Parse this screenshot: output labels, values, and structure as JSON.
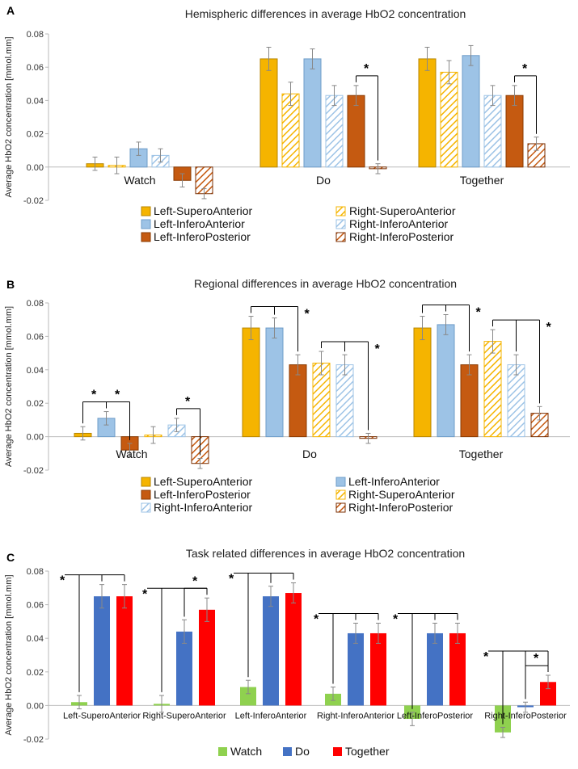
{
  "colors": {
    "lsa": "#F5B400",
    "lia": "#9DC3E6",
    "lip": "#C55A11",
    "watch": "#8FD14F",
    "do": "#4472C4",
    "together": "#FF0000",
    "rsa_hatch": "#F5B400",
    "ria_hatch": "#9DC3E6",
    "rip_hatch": "#C55A11"
  },
  "chart_data": [
    {
      "panel": "A",
      "type": "bar",
      "title": "Hemispheric differences in average HbO2 concentration",
      "ylabel": "Average HbO2 concentration [mmol.mm]",
      "ylim": [
        -0.02,
        0.08
      ],
      "yticks": [
        "0.08",
        "0.06",
        "0.04",
        "0.02",
        "0.00",
        "-0.02"
      ],
      "categories": [
        "Watch",
        "Do",
        "Together"
      ],
      "series": [
        {
          "name": "Left-SuperoAnterior",
          "style": "lsa",
          "values": [
            0.002,
            0.065,
            0.065
          ],
          "errors": [
            0.004,
            0.007,
            0.007
          ]
        },
        {
          "name": "Right-SuperoAnterior",
          "style": "rsa",
          "values": [
            0.001,
            0.044,
            0.057
          ],
          "errors": [
            0.005,
            0.007,
            0.007
          ]
        },
        {
          "name": "Left-InferoAnterior",
          "style": "lia",
          "values": [
            0.011,
            0.065,
            0.067
          ],
          "errors": [
            0.004,
            0.006,
            0.006
          ]
        },
        {
          "name": "Right-InferoAnterior",
          "style": "ria",
          "values": [
            0.007,
            0.043,
            0.043
          ],
          "errors": [
            0.004,
            0.006,
            0.006
          ]
        },
        {
          "name": "Left-InferoPosterior",
          "style": "lip",
          "values": [
            -0.008,
            0.043,
            0.043
          ],
          "errors": [
            0.004,
            0.006,
            0.006
          ]
        },
        {
          "name": "Right-InferoPosterior",
          "style": "rip",
          "values": [
            -0.016,
            -0.001,
            0.014
          ],
          "errors": [
            0.003,
            0.003,
            0.004
          ]
        }
      ],
      "annotations": [
        {
          "label": "*",
          "group": 1,
          "from": 4,
          "to": 5
        },
        {
          "label": "*",
          "group": 2,
          "from": 4,
          "to": 5
        }
      ]
    },
    {
      "panel": "B",
      "type": "bar",
      "title": "Regional differences in average HbO2 concentration",
      "ylabel": "Average HbO2 concentration [mmol.mm]",
      "ylim": [
        -0.02,
        0.08
      ],
      "yticks": [
        "0.08",
        "0.06",
        "0.04",
        "0.02",
        "0.00",
        "-0.02"
      ],
      "categories": [
        "Watch",
        "Do",
        "Together"
      ],
      "series": [
        {
          "name": "Left-SuperoAnterior",
          "style": "lsa",
          "values": [
            0.002,
            0.065,
            0.065
          ],
          "errors": [
            0.004,
            0.007,
            0.007
          ]
        },
        {
          "name": "Left-InferoAnterior",
          "style": "lia",
          "values": [
            0.011,
            0.065,
            0.067
          ],
          "errors": [
            0.004,
            0.006,
            0.006
          ]
        },
        {
          "name": "Left-InferoPosterior",
          "style": "lip",
          "values": [
            -0.008,
            0.043,
            0.043
          ],
          "errors": [
            0.004,
            0.006,
            0.006
          ]
        },
        {
          "name": "Right-SuperoAnterior",
          "style": "rsa",
          "values": [
            0.001,
            0.044,
            0.057
          ],
          "errors": [
            0.005,
            0.007,
            0.007
          ]
        },
        {
          "name": "Right-InferoAnterior",
          "style": "ria",
          "values": [
            0.007,
            0.043,
            0.043
          ],
          "errors": [
            0.004,
            0.006,
            0.006
          ]
        },
        {
          "name": "Right-InferoPosterior",
          "style": "rip",
          "values": [
            -0.016,
            -0.001,
            0.014
          ],
          "errors": [
            0.003,
            0.003,
            0.004
          ]
        }
      ],
      "annotations": [
        {
          "label": "*",
          "group": 0,
          "from": 0,
          "to": 1
        },
        {
          "label": "*",
          "group": 0,
          "from": 1,
          "to": 2
        },
        {
          "label": "*",
          "group": 0,
          "from": 4,
          "to": 5
        },
        {
          "label": "*",
          "group": 1,
          "from": 0,
          "to": 2,
          "multi": [
            0,
            1
          ]
        },
        {
          "label": "*",
          "group": 1,
          "from": 3,
          "to": 5,
          "multi": [
            3,
            4
          ]
        },
        {
          "label": "*",
          "group": 2,
          "from": 0,
          "to": 2,
          "multi": [
            0,
            1
          ]
        },
        {
          "label": "*",
          "group": 2,
          "from": 3,
          "to": 5,
          "multi": [
            3,
            4
          ]
        }
      ]
    },
    {
      "panel": "C",
      "type": "bar",
      "title": "Task related differences in average HbO2 concentration",
      "ylabel": "Average HbO2 concentration [mmol.mm]",
      "ylim": [
        -0.02,
        0.08
      ],
      "yticks": [
        "0.08",
        "0.06",
        "0.04",
        "0.02",
        "0.00",
        "-0.02"
      ],
      "categories": [
        "Left-SuperoAnterior",
        "Right-SuperoAnterior",
        "Left-InferoAnterior",
        "Right-InferoAnterior",
        "Left-InferoPosterior",
        "Right-InferoPosterior"
      ],
      "series": [
        {
          "name": "Watch",
          "style": "watch",
          "values": [
            0.002,
            0.001,
            0.011,
            0.007,
            -0.008,
            -0.016
          ],
          "errors": [
            0.004,
            0.005,
            0.004,
            0.004,
            0.004,
            0.003
          ]
        },
        {
          "name": "Do",
          "style": "do",
          "values": [
            0.065,
            0.044,
            0.065,
            0.043,
            0.043,
            -0.001
          ],
          "errors": [
            0.007,
            0.007,
            0.006,
            0.006,
            0.006,
            0.003
          ]
        },
        {
          "name": "Together",
          "style": "together",
          "values": [
            0.065,
            0.057,
            0.067,
            0.043,
            0.043,
            0.014
          ],
          "errors": [
            0.007,
            0.007,
            0.006,
            0.006,
            0.006,
            0.004
          ]
        }
      ],
      "annotations": [
        {
          "label": "*",
          "group": 0,
          "from": 0,
          "to": 2,
          "multi": [
            0,
            1
          ]
        },
        {
          "label": "*",
          "group": 1,
          "from": 0,
          "to": 2,
          "multi": [
            0,
            1
          ]
        },
        {
          "label": "*",
          "group": 1,
          "from": 1,
          "to": 2
        },
        {
          "label": "*",
          "group": 2,
          "from": 0,
          "to": 2,
          "multi": [
            0,
            1
          ]
        },
        {
          "label": "*",
          "group": 3,
          "from": 0,
          "to": 2,
          "multi": [
            0,
            1
          ]
        },
        {
          "label": "*",
          "group": 4,
          "from": 0,
          "to": 2,
          "multi": [
            0,
            1
          ]
        },
        {
          "label": "*",
          "group": 5,
          "from": 0,
          "to": 2,
          "multi": [
            0,
            1
          ]
        },
        {
          "label": "*",
          "group": 5,
          "from": 1,
          "to": 2
        }
      ]
    }
  ]
}
